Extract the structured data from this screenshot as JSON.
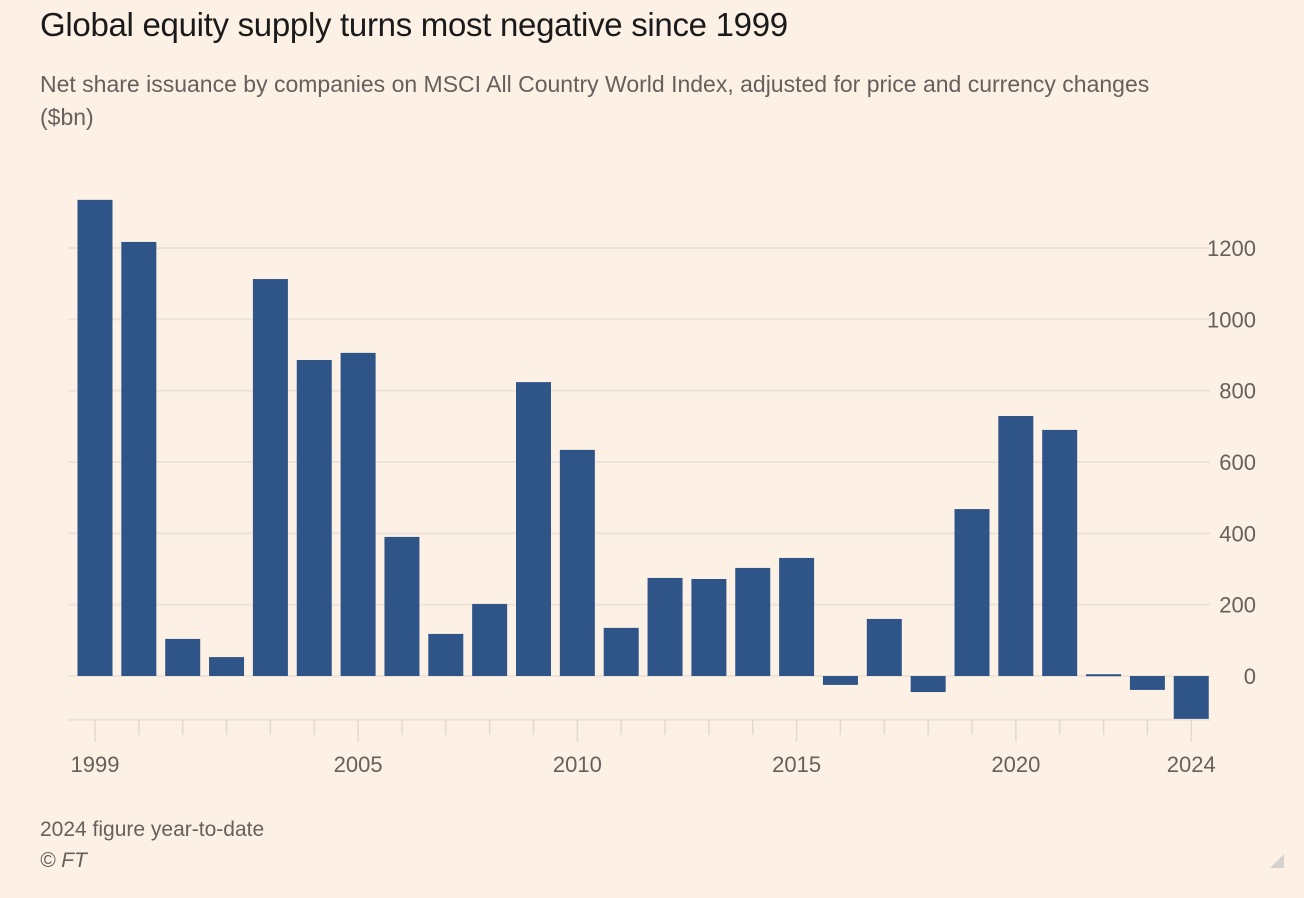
{
  "header": {
    "title": "Global equity supply turns most negative since 1999",
    "subtitle": "Net share issuance by companies on MSCI All Country World Index, adjusted for price and currency changes ($bn)"
  },
  "footer": {
    "note": "2024 figure year-to-date",
    "source": "© FT"
  },
  "colors": {
    "bar": "#2f5487",
    "background": "#fdf1e6",
    "grid": "#ece3da",
    "axis_text": "#66605c"
  },
  "chart_data": {
    "type": "bar",
    "title": "Global equity supply turns most negative since 1999",
    "subtitle": "Net share issuance by companies on MSCI All Country World Index, adjusted for price and currency changes ($bn)",
    "xlabel": "",
    "ylabel": "$bn",
    "categories": [
      "1999",
      "2000",
      "2001",
      "2002",
      "2003",
      "2004",
      "2005",
      "2006",
      "2007",
      "2008",
      "2009",
      "2010",
      "2011",
      "2012",
      "2013",
      "2014",
      "2015",
      "2016",
      "2017",
      "2018",
      "2019",
      "2020",
      "2021",
      "2022",
      "2023",
      "2024"
    ],
    "values": [
      1335,
      1217,
      104,
      53,
      1113,
      886,
      906,
      390,
      118,
      202,
      824,
      634,
      135,
      275,
      272,
      303,
      331,
      -25,
      160,
      -45,
      468,
      729,
      690,
      5,
      -39,
      -123
    ],
    "x_tick_labels": [
      "1999",
      "2005",
      "2010",
      "2015",
      "2020",
      "2024"
    ],
    "y_ticks": [
      0,
      200,
      400,
      600,
      800,
      1000,
      1200
    ],
    "y_tick_labels": [
      "0",
      "200",
      "400",
      "600",
      "800",
      "1000",
      "1200"
    ],
    "ylim": [
      -123,
      1335
    ],
    "y_axis_position": "right",
    "grid": true,
    "legend": "none",
    "annotations": [
      "2024 figure year-to-date"
    ]
  }
}
